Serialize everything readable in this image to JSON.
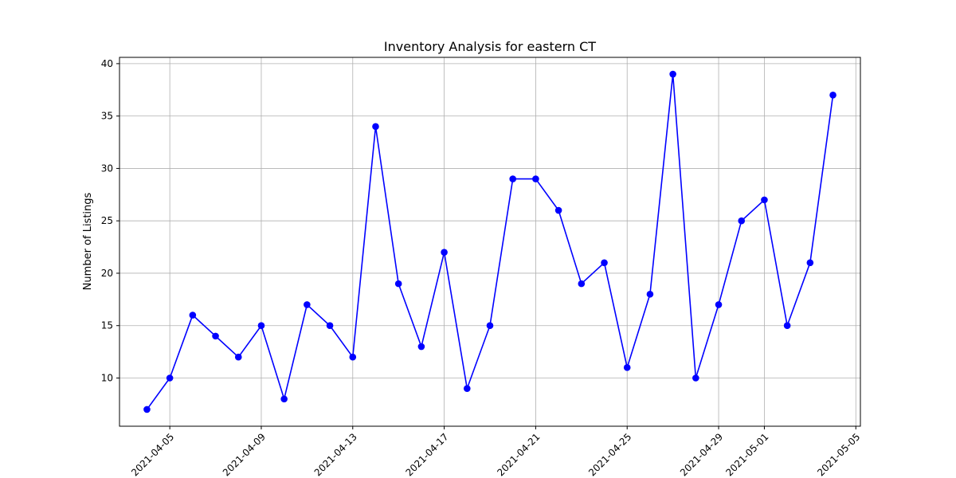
{
  "chart_data": {
    "type": "line",
    "title": "Inventory Analysis for eastern CT",
    "xlabel": "",
    "ylabel": "Number of Listings",
    "grid": true,
    "line_color": "#0000ff",
    "marker": "circle",
    "xlim": [
      "2021-04-02.8",
      "2021-05-05.2"
    ],
    "ylim": [
      5.4,
      40.6
    ],
    "yticks": [
      10,
      15,
      20,
      25,
      30,
      35,
      40
    ],
    "xticks": [
      "2021-04-05",
      "2021-04-09",
      "2021-04-13",
      "2021-04-17",
      "2021-04-21",
      "2021-04-25",
      "2021-04-29",
      "2021-05-01",
      "2021-05-05"
    ],
    "x": [
      "2021-04-04",
      "2021-04-05",
      "2021-04-06",
      "2021-04-07",
      "2021-04-08",
      "2021-04-09",
      "2021-04-10",
      "2021-04-11",
      "2021-04-12",
      "2021-04-13",
      "2021-04-14",
      "2021-04-15",
      "2021-04-16",
      "2021-04-17",
      "2021-04-18",
      "2021-04-19",
      "2021-04-20",
      "2021-04-21",
      "2021-04-22",
      "2021-04-23",
      "2021-04-24",
      "2021-04-25",
      "2021-04-26",
      "2021-04-27",
      "2021-04-28",
      "2021-04-29",
      "2021-04-30",
      "2021-05-01",
      "2021-05-02",
      "2021-05-03",
      "2021-05-04"
    ],
    "series": [
      {
        "values": [
          7,
          10,
          16,
          14,
          12,
          15,
          8,
          17,
          15,
          12,
          34,
          19,
          13,
          22,
          9,
          15,
          29,
          29,
          26,
          19,
          21,
          11,
          18,
          39,
          10,
          17,
          25,
          27,
          15,
          21,
          37
        ]
      }
    ]
  }
}
